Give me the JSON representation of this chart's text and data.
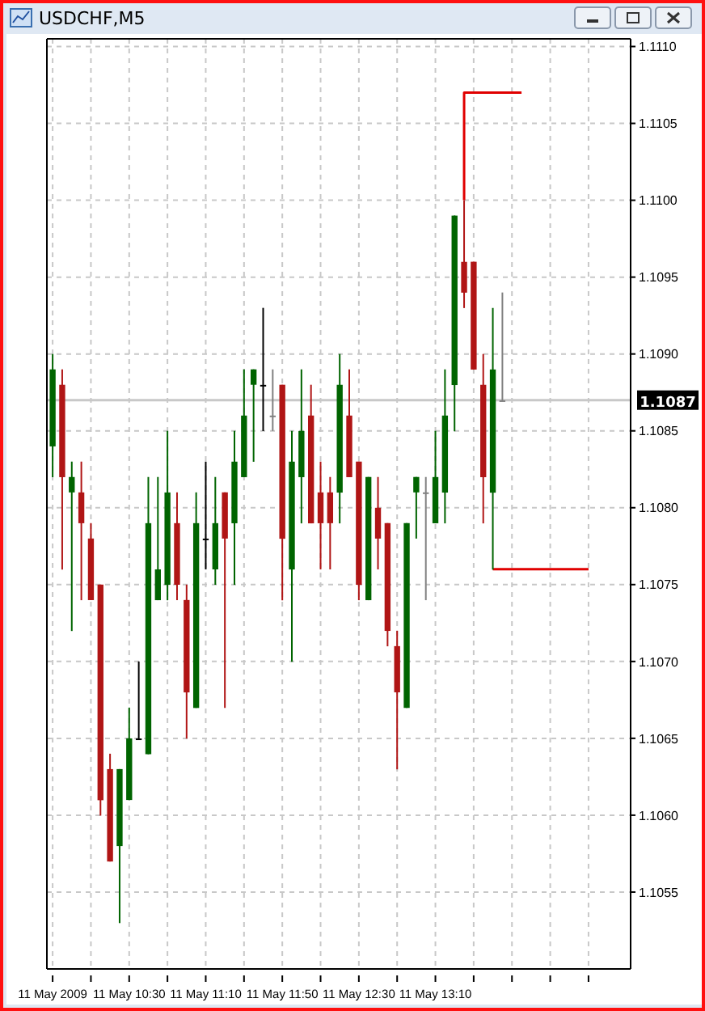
{
  "chart_data": {
    "type": "candlestick",
    "title": "USDCHF,M5",
    "x": [
      "2009-05-11T09:50",
      "2009-05-11T09:55",
      "2009-05-11T10:00",
      "2009-05-11T10:05",
      "2009-05-11T10:10",
      "2009-05-11T10:15",
      "2009-05-11T10:20",
      "2009-05-11T10:25",
      "2009-05-11T10:30",
      "2009-05-11T10:35",
      "2009-05-11T10:40",
      "2009-05-11T10:45",
      "2009-05-11T10:50",
      "2009-05-11T10:55",
      "2009-05-11T11:00",
      "2009-05-11T11:05",
      "2009-05-11T11:10",
      "2009-05-11T11:15",
      "2009-05-11T11:20",
      "2009-05-11T11:25",
      "2009-05-11T11:30",
      "2009-05-11T11:35",
      "2009-05-11T11:40",
      "2009-05-11T11:45",
      "2009-05-11T11:50",
      "2009-05-11T11:55",
      "2009-05-11T12:00",
      "2009-05-11T12:05",
      "2009-05-11T12:10",
      "2009-05-11T12:15",
      "2009-05-11T12:20",
      "2009-05-11T12:25",
      "2009-05-11T12:30",
      "2009-05-11T12:35",
      "2009-05-11T12:40",
      "2009-05-11T12:45",
      "2009-05-11T12:50",
      "2009-05-11T12:55",
      "2009-05-11T13:00",
      "2009-05-11T13:05",
      "2009-05-11T13:10",
      "2009-05-11T13:15",
      "2009-05-11T13:20",
      "2009-05-11T13:25",
      "2009-05-11T13:30",
      "2009-05-11T13:35",
      "2009-05-11T13:40",
      "2009-05-11T13:45"
    ],
    "ohlc": [
      [
        1.1084,
        1.109,
        1.1082,
        1.1089
      ],
      [
        1.1088,
        1.1089,
        1.1076,
        1.1082
      ],
      [
        1.1081,
        1.1083,
        1.1072,
        1.1082
      ],
      [
        1.1081,
        1.1083,
        1.1074,
        1.1079
      ],
      [
        1.1078,
        1.1079,
        1.1074,
        1.1074
      ],
      [
        1.1075,
        1.1075,
        1.106,
        1.1061
      ],
      [
        1.1063,
        1.1064,
        1.1057,
        1.1057
      ],
      [
        1.1058,
        1.1063,
        1.1053,
        1.1063
      ],
      [
        1.1061,
        1.1067,
        1.1061,
        1.1065
      ],
      [
        1.1065,
        1.107,
        1.1065,
        1.1065
      ],
      [
        1.1064,
        1.1082,
        1.1064,
        1.1079
      ],
      [
        1.1074,
        1.1082,
        1.1074,
        1.1076
      ],
      [
        1.1075,
        1.1085,
        1.1074,
        1.1081
      ],
      [
        1.1079,
        1.1081,
        1.1074,
        1.1075
      ],
      [
        1.1074,
        1.1075,
        1.1065,
        1.1068
      ],
      [
        1.1067,
        1.1081,
        1.1067,
        1.1079
      ],
      [
        1.1078,
        1.1083,
        1.1076,
        1.1078
      ],
      [
        1.1076,
        1.1082,
        1.1075,
        1.1079
      ],
      [
        1.1081,
        1.1081,
        1.1067,
        1.1078
      ],
      [
        1.1079,
        1.1085,
        1.1075,
        1.1083
      ],
      [
        1.1082,
        1.1089,
        1.1082,
        1.1086
      ],
      [
        1.1088,
        1.1089,
        1.1083,
        1.1089
      ],
      [
        1.1088,
        1.1093,
        1.1085,
        1.1088
      ],
      [
        1.1086,
        1.1089,
        1.1085,
        1.1086
      ],
      [
        1.1088,
        1.1088,
        1.1074,
        1.1078
      ],
      [
        1.1076,
        1.1085,
        1.107,
        1.1083
      ],
      [
        1.1082,
        1.1089,
        1.1079,
        1.1085
      ],
      [
        1.1086,
        1.1088,
        1.1079,
        1.1079
      ],
      [
        1.1081,
        1.1083,
        1.1076,
        1.1079
      ],
      [
        1.1081,
        1.1082,
        1.1076,
        1.1079
      ],
      [
        1.1081,
        1.109,
        1.1079,
        1.1088
      ],
      [
        1.1086,
        1.1089,
        1.1082,
        1.1082
      ],
      [
        1.1083,
        1.1083,
        1.1074,
        1.1075
      ],
      [
        1.1074,
        1.1082,
        1.1074,
        1.1082
      ],
      [
        1.108,
        1.1082,
        1.1076,
        1.1078
      ],
      [
        1.1079,
        1.1079,
        1.1071,
        1.1072
      ],
      [
        1.1071,
        1.1072,
        1.1063,
        1.1068
      ],
      [
        1.1067,
        1.1079,
        1.1067,
        1.1079
      ],
      [
        1.1081,
        1.1082,
        1.1078,
        1.1082
      ],
      [
        1.1081,
        1.1082,
        1.1074,
        1.1081
      ],
      [
        1.1079,
        1.1085,
        1.1079,
        1.1082
      ],
      [
        1.1081,
        1.1089,
        1.1079,
        1.1086
      ],
      [
        1.1088,
        1.1099,
        1.1085,
        1.1099
      ],
      [
        1.1096,
        1.11,
        1.1093,
        1.1094
      ],
      [
        1.1096,
        1.1096,
        1.1089,
        1.1089
      ],
      [
        1.1088,
        1.109,
        1.1079,
        1.1082
      ],
      [
        1.1081,
        1.1093,
        1.1076,
        1.1089
      ],
      [
        1.1087,
        1.1094,
        1.1087,
        1.1087
      ]
    ],
    "colors": [
      "#006400",
      "#b01515",
      "#006400",
      "#b01515",
      "#b01515",
      "#b01515",
      "#b01515",
      "#006400",
      "#006400",
      "#000000",
      "#006400",
      "#006400",
      "#006400",
      "#b01515",
      "#b01515",
      "#006400",
      "#000000",
      "#006400",
      "#b01515",
      "#006400",
      "#006400",
      "#006400",
      "#000000",
      "#808080",
      "#b01515",
      "#006400",
      "#006400",
      "#b01515",
      "#b01515",
      "#b01515",
      "#006400",
      "#b01515",
      "#b01515",
      "#006400",
      "#b01515",
      "#b01515",
      "#b01515",
      "#006400",
      "#006400",
      "#808080",
      "#006400",
      "#006400",
      "#006400",
      "#b01515",
      "#b01515",
      "#b01515",
      "#006400",
      "#808080"
    ],
    "series": [
      {
        "type": "line",
        "color": "#e00000",
        "x": [
          "2009-05-11T13:25",
          "2009-05-11T13:25",
          "2009-05-11T13:55"
        ],
        "values": [
          1.11,
          1.1107,
          1.1107
        ]
      },
      {
        "type": "line",
        "color": "#e00000",
        "x": [
          "2009-05-11T13:40",
          "2009-05-11T14:30"
        ],
        "values": [
          1.1076,
          1.1076
        ]
      }
    ],
    "xlim": [
      "2009-05-11T09:47",
      "2009-05-11T14:52"
    ],
    "xticks": [
      {
        "value": "2009-05-11T09:50",
        "label": "11 May 2009"
      },
      {
        "value": "2009-05-11T10:10",
        "label": null
      },
      {
        "value": "2009-05-11T10:30",
        "label": "11 May 10:30"
      },
      {
        "value": "2009-05-11T10:50",
        "label": null
      },
      {
        "value": "2009-05-11T11:10",
        "label": "11 May 11:10"
      },
      {
        "value": "2009-05-11T11:30",
        "label": null
      },
      {
        "value": "2009-05-11T11:50",
        "label": "11 May 11:50"
      },
      {
        "value": "2009-05-11T12:10",
        "label": null
      },
      {
        "value": "2009-05-11T12:30",
        "label": "11 May 12:30"
      },
      {
        "value": "2009-05-11T12:50",
        "label": null
      },
      {
        "value": "2009-05-11T13:10",
        "label": "11 May 13:10"
      },
      {
        "value": "2009-05-11T13:30",
        "label": null
      },
      {
        "value": "2009-05-11T13:50",
        "label": null
      },
      {
        "value": "2009-05-11T14:10",
        "label": null
      },
      {
        "value": "2009-05-11T14:30",
        "label": null
      }
    ],
    "ylim": [
      1.105,
      1.11105
    ],
    "yticks": [
      {
        "value": 1.1055,
        "label": "1.1055"
      },
      {
        "value": 1.106,
        "label": "1.1060"
      },
      {
        "value": 1.1065,
        "label": "1.1065"
      },
      {
        "value": 1.107,
        "label": "1.1070"
      },
      {
        "value": 1.1075,
        "label": "1.1075"
      },
      {
        "value": 1.108,
        "label": "1.1080"
      },
      {
        "value": 1.1085,
        "label": "1.1085"
      },
      {
        "value": 1.109,
        "label": "1.1090"
      },
      {
        "value": 1.1095,
        "label": "1.1095"
      },
      {
        "value": 1.11,
        "label": "1.1100"
      },
      {
        "value": 1.1105,
        "label": "1.1105"
      },
      {
        "value": 1.111,
        "label": "1.1110"
      }
    ],
    "ref_lines": [
      {
        "axis": "y",
        "value": 1.1087,
        "label": "1.1087",
        "color": "#c8c8c8"
      }
    ],
    "grid": true,
    "line_style": "solid"
  }
}
